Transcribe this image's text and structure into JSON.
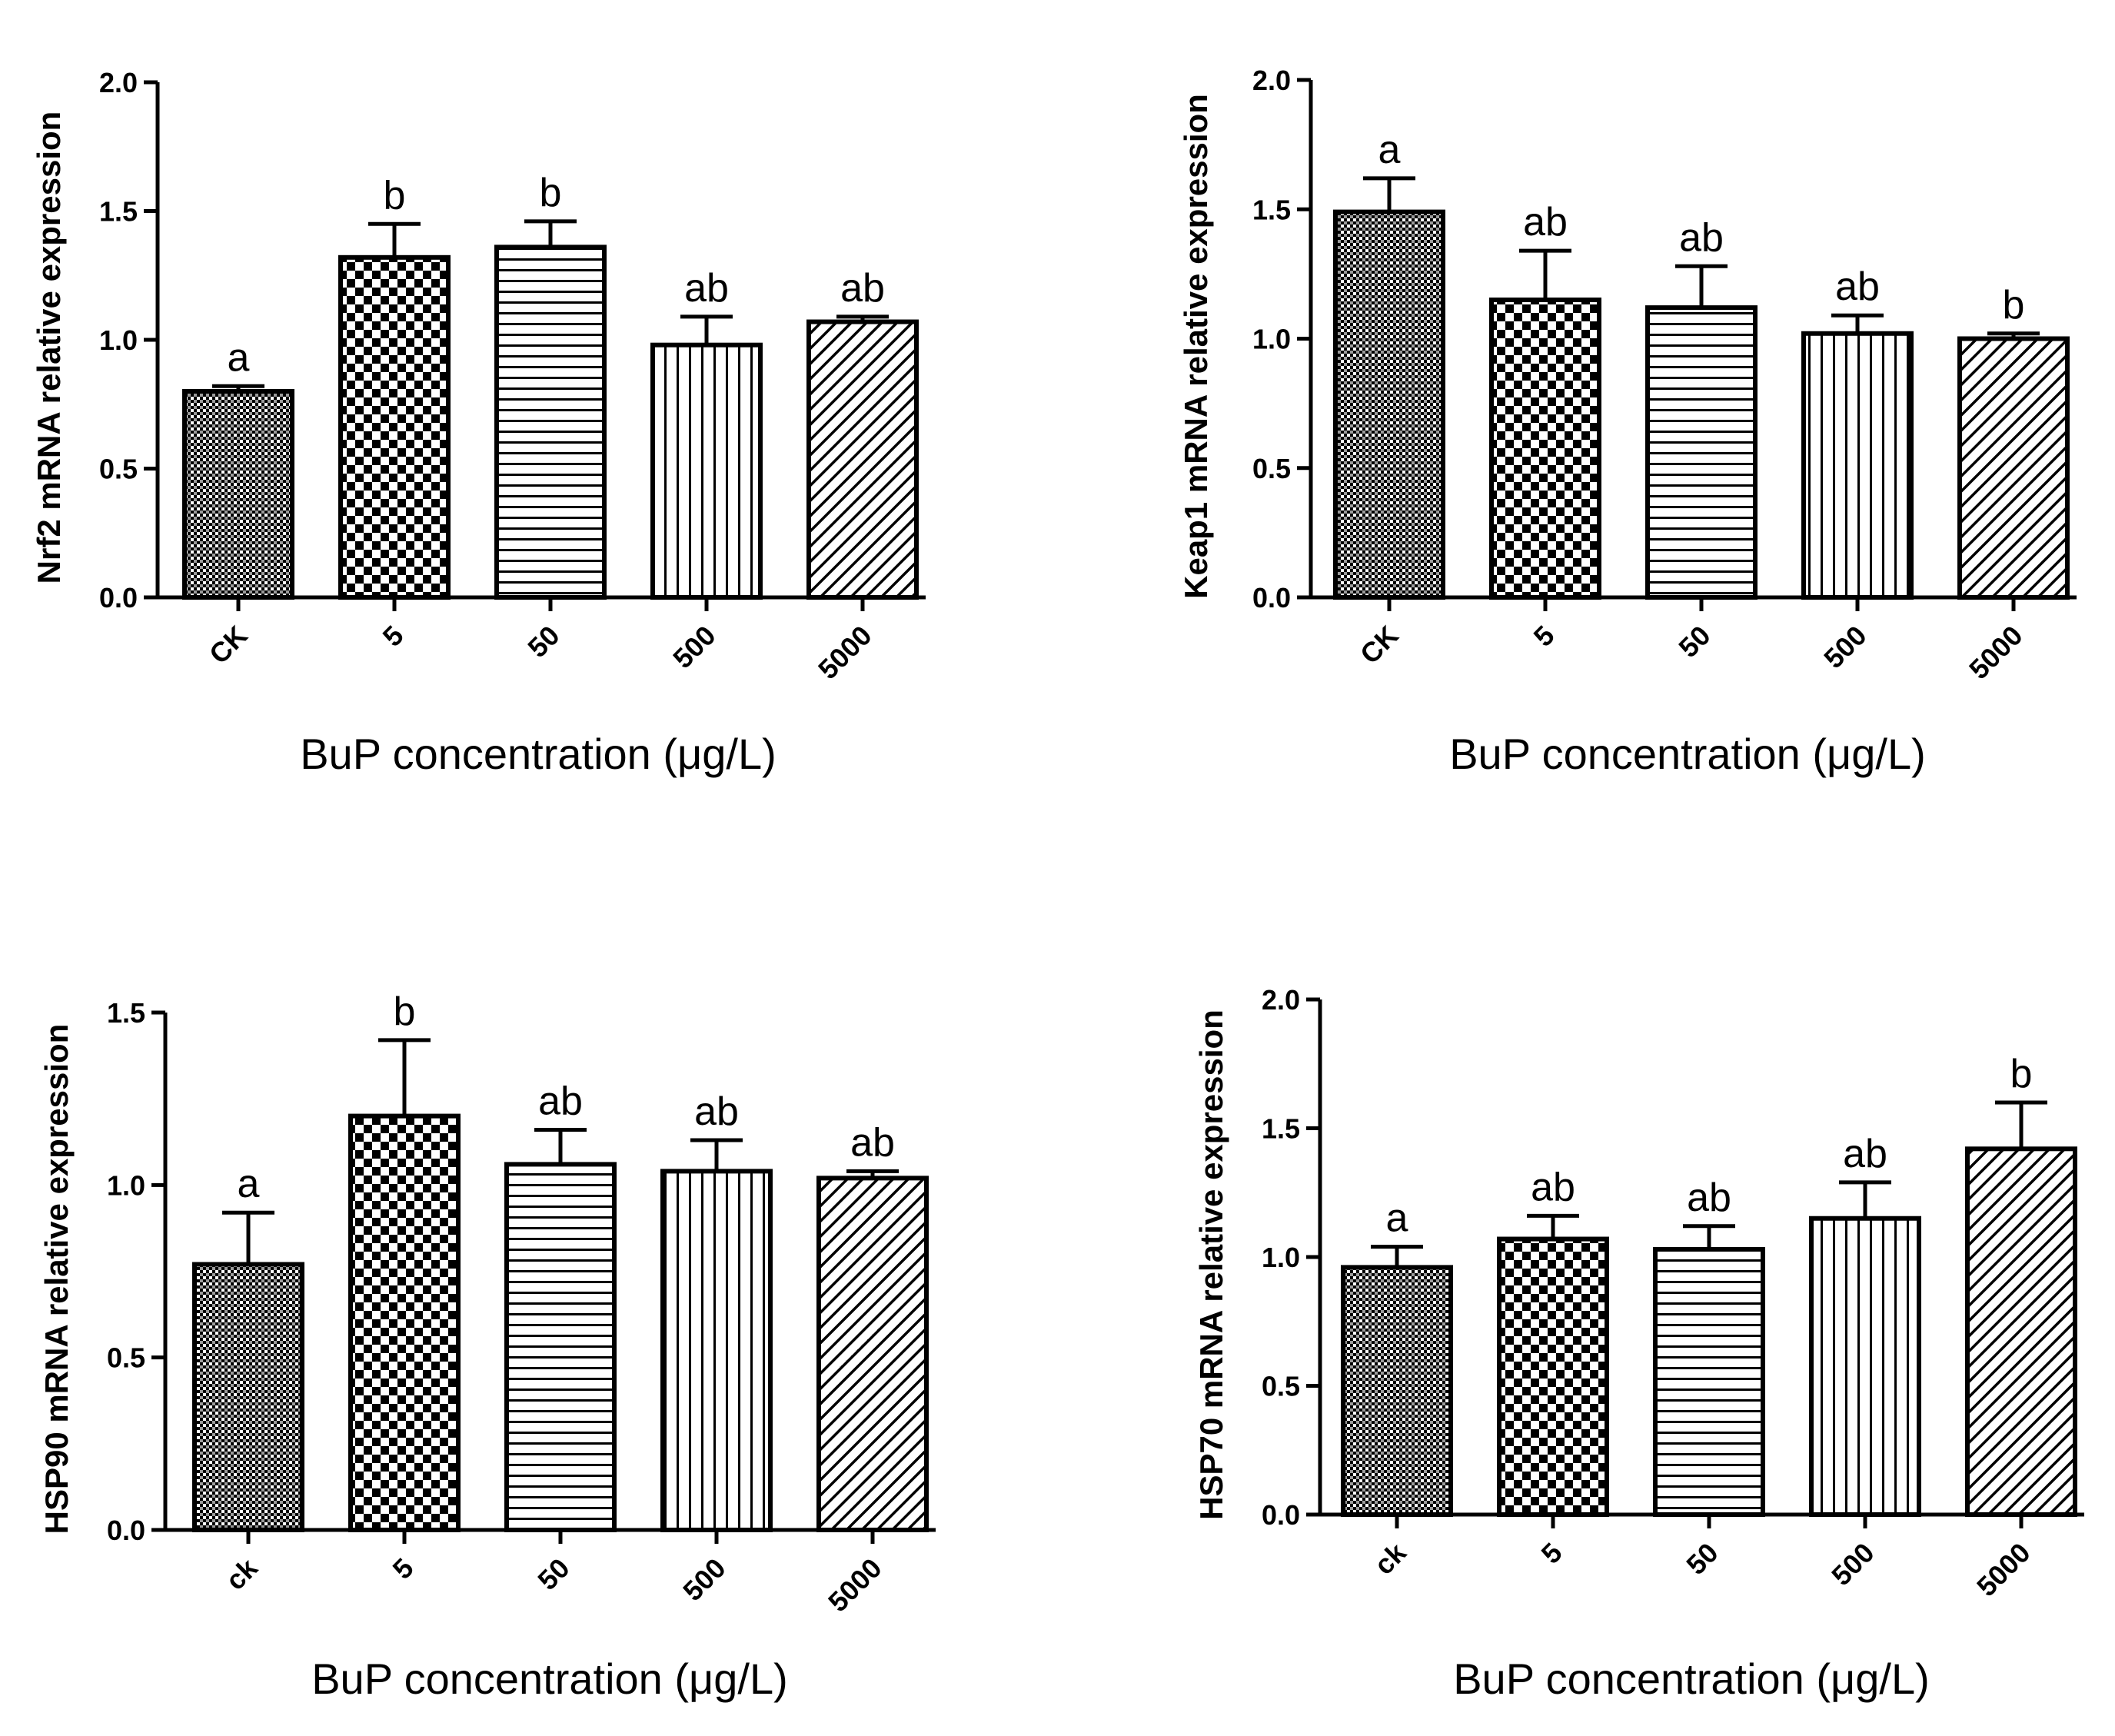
{
  "chart_data": [
    {
      "type": "bar",
      "ylabel": "Nrf2 mRNA relative expression",
      "xlabel": "BuP concentration (μg/L)",
      "categories": [
        "CK",
        "5",
        "50",
        "500",
        "5000"
      ],
      "values": [
        0.8,
        1.32,
        1.36,
        0.98,
        1.07
      ],
      "errors": [
        0.02,
        0.13,
        0.1,
        0.11,
        0.02
      ],
      "significance": [
        "a",
        "b",
        "b",
        "ab",
        "ab"
      ],
      "ylim": [
        0,
        2.0
      ],
      "yticks": [
        "0.0",
        "0.5",
        "1.0",
        "1.5",
        "2.0"
      ],
      "grid": false,
      "legend": "none"
    },
    {
      "type": "bar",
      "ylabel": "Keap1 mRNA relative expression",
      "xlabel": "BuP concentration (μg/L)",
      "categories": [
        "CK",
        "5",
        "50",
        "500",
        "5000"
      ],
      "values": [
        1.49,
        1.15,
        1.12,
        1.02,
        1.0
      ],
      "errors": [
        0.13,
        0.19,
        0.16,
        0.07,
        0.02
      ],
      "significance": [
        "a",
        "ab",
        "ab",
        "ab",
        "b"
      ],
      "ylim": [
        0,
        2.0
      ],
      "yticks": [
        "0.0",
        "0.5",
        "1.0",
        "1.5",
        "2.0"
      ],
      "grid": false,
      "legend": "none"
    },
    {
      "type": "bar",
      "ylabel": "HSP90 mRNA relative expression",
      "xlabel": "BuP concentration (μg/L)",
      "categories": [
        "ck",
        "5",
        "50",
        "500",
        "5000"
      ],
      "values": [
        0.77,
        1.2,
        1.06,
        1.04,
        1.02
      ],
      "errors": [
        0.15,
        0.22,
        0.1,
        0.09,
        0.02
      ],
      "significance": [
        "a",
        "b",
        "ab",
        "ab",
        "ab"
      ],
      "ylim": [
        0,
        1.5
      ],
      "yticks": [
        "0.0",
        "0.5",
        "1.0",
        "1.5"
      ],
      "grid": false,
      "legend": "none"
    },
    {
      "type": "bar",
      "ylabel": "HSP70 mRNA relative expression",
      "xlabel": "BuP concentration (μg/L)",
      "categories": [
        "ck",
        "5",
        "50",
        "500",
        "5000"
      ],
      "values": [
        0.96,
        1.07,
        1.03,
        1.15,
        1.42
      ],
      "errors": [
        0.08,
        0.09,
        0.09,
        0.14,
        0.18
      ],
      "significance": [
        "a",
        "ab",
        "ab",
        "ab",
        "b"
      ],
      "ylim": [
        0,
        2.0
      ],
      "yticks": [
        "0.0",
        "0.5",
        "1.0",
        "1.5",
        "2.0"
      ],
      "grid": false,
      "legend": "none"
    }
  ]
}
